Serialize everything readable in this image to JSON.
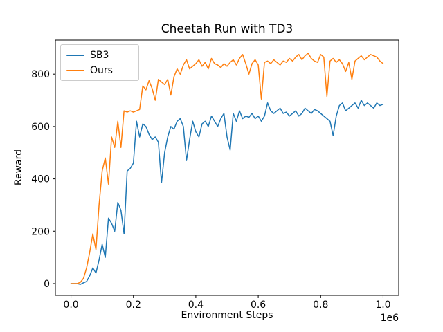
{
  "title": "Cheetah Run with TD3",
  "xlabel": "Environment Steps",
  "ylabel": "Reward",
  "legend": [
    {
      "label": "SB3",
      "color": "#1f77b4"
    },
    {
      "label": "Ours",
      "color": "#ff7f0e"
    }
  ],
  "chart_data": {
    "type": "line",
    "title": "Cheetah Run with TD3",
    "xlabel": "Environment Steps",
    "ylabel": "Reward",
    "offset_text": "1e6",
    "grid": false,
    "legend_position": "upper left",
    "xlim": [
      -0.05,
      1.05
    ],
    "ylim": [
      -45,
      930
    ],
    "xtick_values": [
      0.0,
      0.2,
      0.4,
      0.6,
      0.8,
      1.0
    ],
    "xtick_labels": [
      "0.0",
      "0.2",
      "0.4",
      "0.6",
      "0.8",
      "1.0"
    ],
    "ytick_values": [
      0,
      200,
      400,
      600,
      800
    ],
    "ytick_labels": [
      "0",
      "200",
      "400",
      "600",
      "800"
    ],
    "x": [
      0,
      0.01,
      0.02,
      0.03,
      0.04,
      0.05,
      0.06,
      0.07,
      0.08,
      0.09,
      0.1,
      0.11,
      0.12,
      0.13,
      0.14,
      0.15,
      0.16,
      0.17,
      0.18,
      0.19,
      0.2,
      0.21,
      0.22,
      0.23,
      0.24,
      0.25,
      0.26,
      0.27,
      0.28,
      0.29,
      0.3,
      0.31,
      0.32,
      0.33,
      0.34,
      0.35,
      0.36,
      0.37,
      0.38,
      0.39,
      0.4,
      0.41,
      0.42,
      0.43,
      0.44,
      0.45,
      0.46,
      0.47,
      0.48,
      0.49,
      0.5,
      0.51,
      0.52,
      0.53,
      0.54,
      0.55,
      0.56,
      0.57,
      0.58,
      0.59,
      0.6,
      0.61,
      0.62,
      0.63,
      0.64,
      0.65,
      0.66,
      0.67,
      0.68,
      0.69,
      0.7,
      0.71,
      0.72,
      0.73,
      0.74,
      0.75,
      0.76,
      0.77,
      0.78,
      0.79,
      0.8,
      0.81,
      0.82,
      0.83,
      0.84,
      0.85,
      0.86,
      0.87,
      0.88,
      0.89,
      0.9,
      0.91,
      0.92,
      0.93,
      0.94,
      0.95,
      0.96,
      0.97,
      0.98,
      0.99,
      1.0
    ],
    "series": [
      {
        "name": "SB3",
        "color": "#1f77b4",
        "values": [
          0,
          0,
          0,
          -3,
          3,
          8,
          30,
          60,
          40,
          90,
          150,
          100,
          250,
          230,
          200,
          310,
          280,
          190,
          430,
          440,
          460,
          620,
          560,
          610,
          600,
          570,
          550,
          560,
          540,
          385,
          500,
          560,
          600,
          590,
          620,
          630,
          600,
          470,
          550,
          620,
          580,
          560,
          610,
          620,
          600,
          640,
          620,
          600,
          630,
          650,
          560,
          510,
          650,
          620,
          660,
          630,
          640,
          635,
          650,
          630,
          640,
          620,
          640,
          690,
          660,
          650,
          660,
          670,
          650,
          655,
          640,
          650,
          660,
          640,
          650,
          670,
          660,
          650,
          665,
          660,
          650,
          640,
          630,
          620,
          565,
          640,
          680,
          690,
          660,
          670,
          680,
          690,
          670,
          700,
          680,
          690,
          680,
          670,
          690,
          680,
          685
        ]
      },
      {
        "name": "Ours",
        "color": "#ff7f0e",
        "values": [
          0,
          0,
          0,
          5,
          20,
          60,
          120,
          190,
          130,
          300,
          430,
          480,
          380,
          560,
          520,
          620,
          520,
          660,
          655,
          660,
          655,
          660,
          665,
          755,
          740,
          775,
          745,
          700,
          780,
          770,
          760,
          780,
          720,
          790,
          820,
          800,
          835,
          855,
          820,
          830,
          840,
          855,
          830,
          845,
          820,
          860,
          840,
          835,
          825,
          840,
          830,
          845,
          855,
          835,
          860,
          875,
          840,
          800,
          840,
          855,
          835,
          705,
          845,
          850,
          840,
          855,
          845,
          835,
          850,
          845,
          860,
          850,
          865,
          875,
          855,
          870,
          880,
          860,
          850,
          845,
          875,
          865,
          715,
          850,
          860,
          845,
          855,
          840,
          810,
          845,
          780,
          850,
          860,
          870,
          855,
          865,
          875,
          870,
          865,
          850,
          840
        ]
      }
    ]
  }
}
